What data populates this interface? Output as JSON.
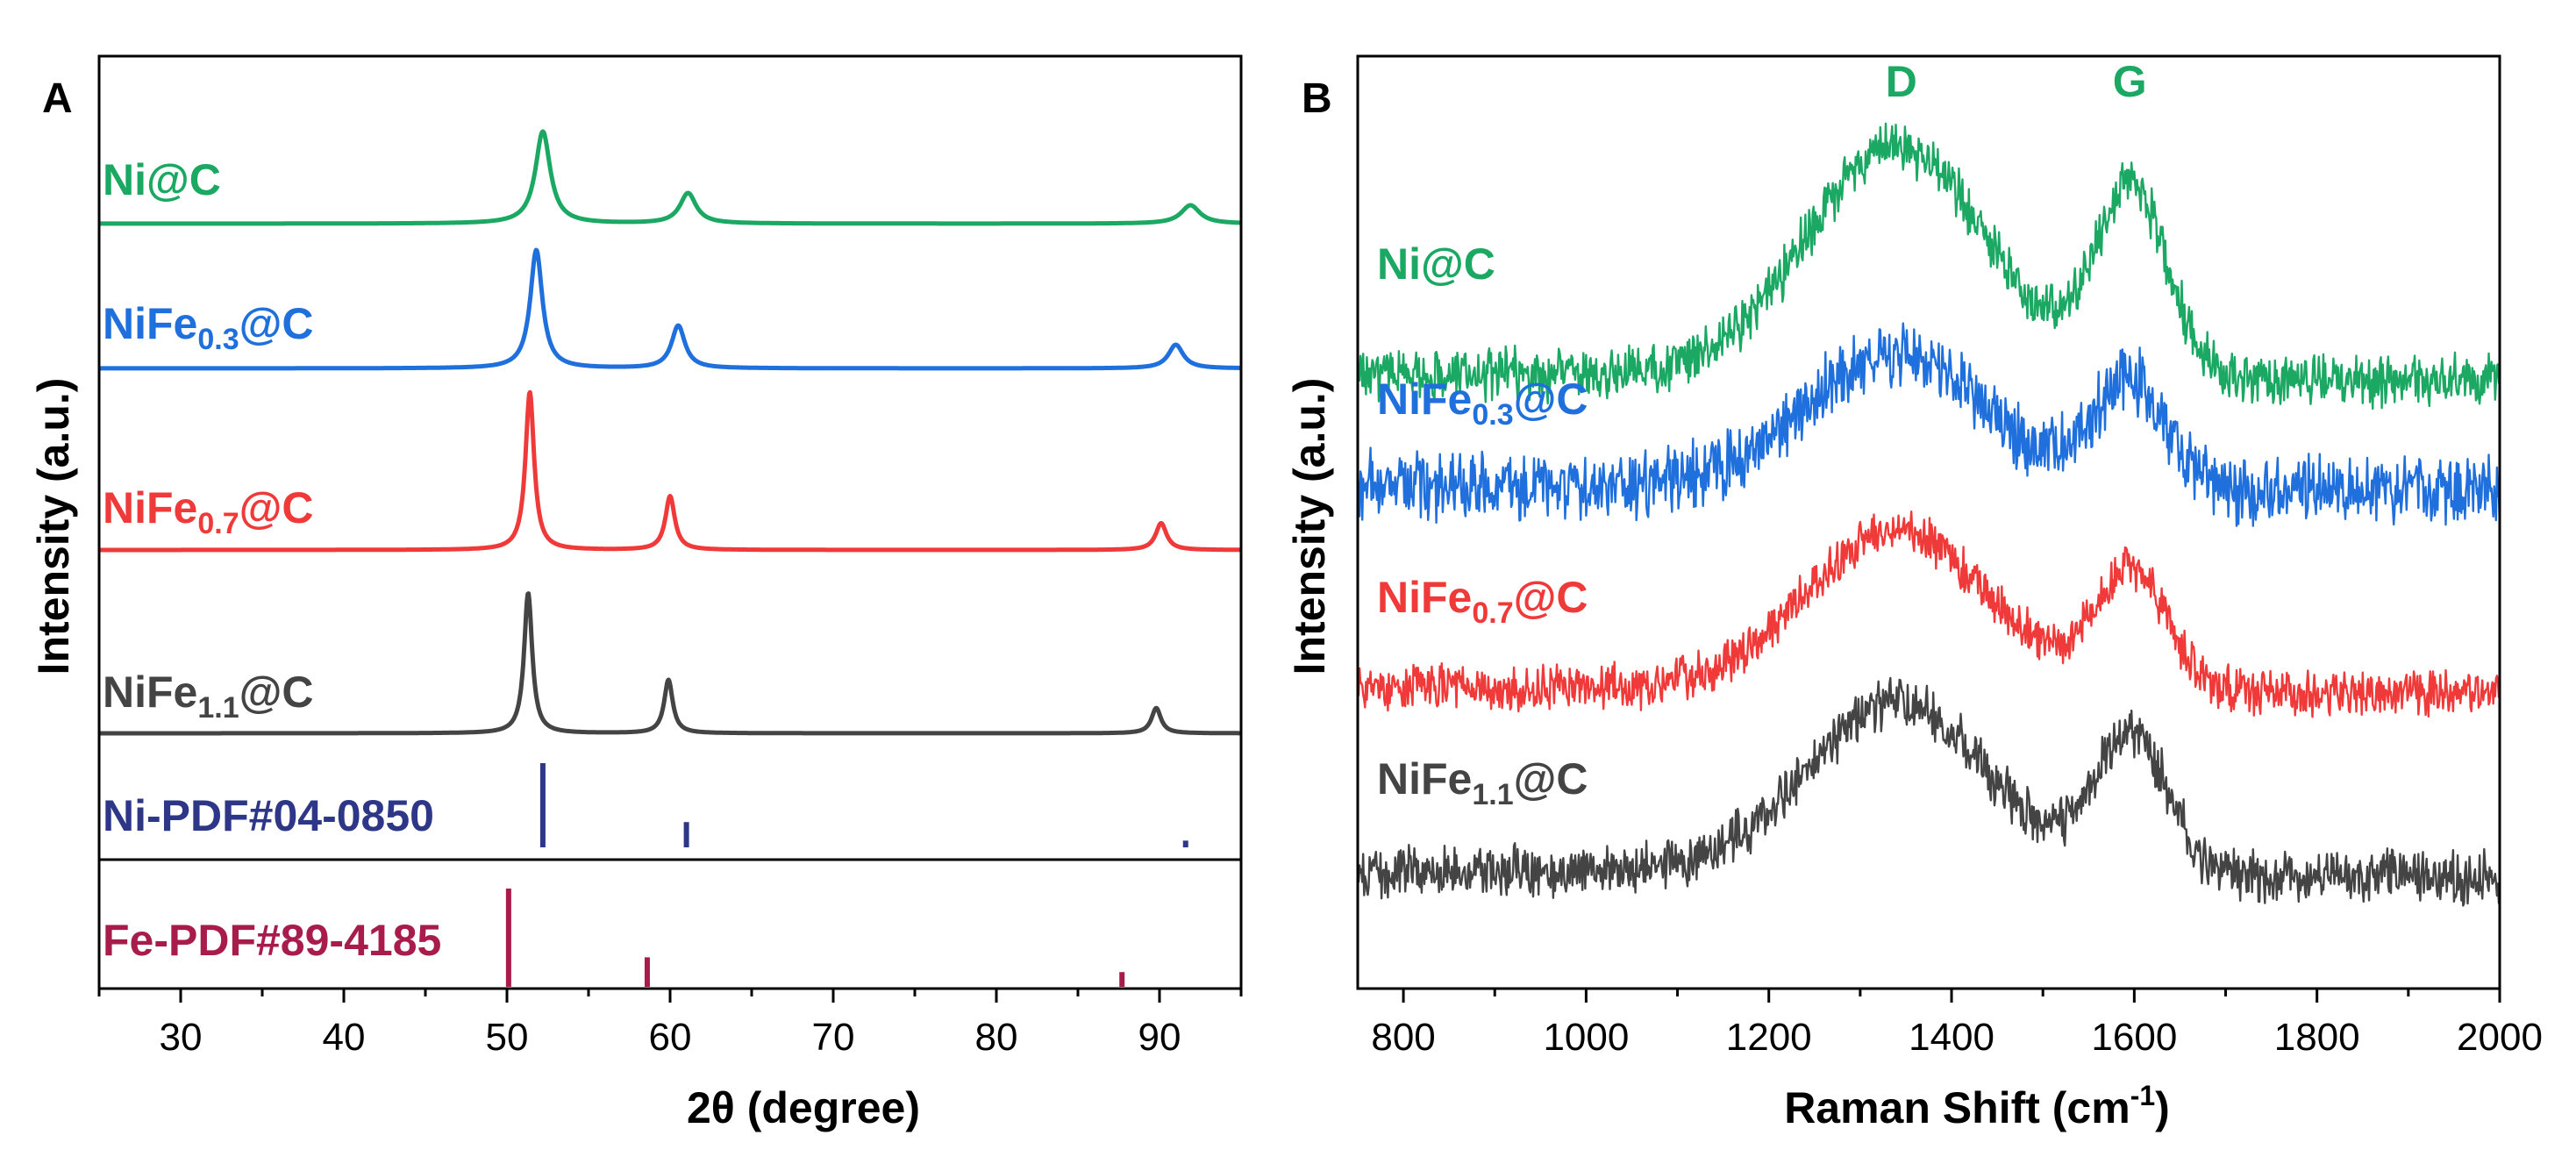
{
  "chart_data": [
    {
      "panel": "A",
      "type": "line",
      "xlabel_main": "2θ (degree)",
      "ylabel": "Intensity (a.u.)",
      "xlim": [
        25,
        95
      ],
      "xticks": [
        30,
        40,
        50,
        60,
        70,
        80,
        90
      ],
      "grid": false,
      "series": [
        {
          "name": "Ni@C",
          "label_main": "Ni@C",
          "label_sub": "",
          "label_tail": "",
          "color": "#1aa863",
          "peaks": [
            [
              52.2,
              1.0,
              0.55
            ],
            [
              61.1,
              0.33,
              0.6
            ],
            [
              91.9,
              0.2,
              0.7
            ]
          ]
        },
        {
          "name": "NiFe0.3@C",
          "label_main": "NiFe",
          "label_sub": "0.3",
          "label_tail": "@C",
          "color": "#1f6fdc",
          "peaks": [
            [
              51.8,
              1.0,
              0.45
            ],
            [
              60.5,
              0.36,
              0.5
            ],
            [
              91.0,
              0.2,
              0.55
            ]
          ]
        },
        {
          "name": "NiFe0.7@C",
          "label_main": "NiFe",
          "label_sub": "0.7",
          "label_tail": "@C",
          "color": "#f03a3a",
          "peaks": [
            [
              51.4,
              1.0,
              0.32
            ],
            [
              60.0,
              0.34,
              0.35
            ],
            [
              90.1,
              0.17,
              0.4
            ]
          ]
        },
        {
          "name": "NiFe1.1@C",
          "label_main": "NiFe",
          "label_sub": "1.1",
          "label_tail": "@C",
          "color": "#444444",
          "peaks": [
            [
              51.3,
              1.0,
              0.3
            ],
            [
              59.9,
              0.38,
              0.32
            ],
            [
              89.8,
              0.18,
              0.35
            ]
          ]
        }
      ],
      "references": [
        {
          "name": "Ni-PDF#04-0850",
          "color": "#2e3787",
          "sticks": [
            {
              "x": 52.2,
              "h": 1.0
            },
            {
              "x": 61.0,
              "h": 0.3
            },
            {
              "x": 91.6,
              "h": 0.08
            }
          ]
        },
        {
          "name": "Fe-PDF#89-4185",
          "color": "#a81c4c",
          "sticks": [
            {
              "x": 50.1,
              "h": 1.0
            },
            {
              "x": 58.6,
              "h": 0.3
            },
            {
              "x": 87.7,
              "h": 0.15
            }
          ]
        }
      ]
    },
    {
      "panel": "B",
      "type": "line",
      "xlabel_main": "Raman Shift (cm",
      "xlabel_sup": "-1",
      "xlabel_tail": ")",
      "ylabel": "Intensity (a.u.)",
      "xlim": [
        750,
        2000
      ],
      "xticks": [
        800,
        1000,
        1200,
        1400,
        1600,
        1800,
        2000
      ],
      "grid": false,
      "band_labels": [
        {
          "text": "D",
          "x": 1345
        },
        {
          "text": "G",
          "x": 1595
        }
      ],
      "series": [
        {
          "name": "Ni@C",
          "label_main": "Ni@C",
          "label_sub": "",
          "label_tail": "",
          "color": "#1aa863",
          "D": 1.0,
          "G": 1.05
        },
        {
          "name": "NiFe0.3@C",
          "label_main": "NiFe",
          "label_sub": "0.3",
          "label_tail": "@C",
          "color": "#1f6fdc",
          "D": 0.85,
          "G": 0.85
        },
        {
          "name": "NiFe0.7@C",
          "label_main": "NiFe",
          "label_sub": "0.7",
          "label_tail": "@C",
          "color": "#f03a3a",
          "D": 0.95,
          "G": 0.9
        },
        {
          "name": "NiFe1.1@C",
          "label_main": "NiFe",
          "label_sub": "1.1",
          "label_tail": "@C",
          "color": "#444444",
          "D": 0.95,
          "G": 1.0
        }
      ]
    }
  ]
}
